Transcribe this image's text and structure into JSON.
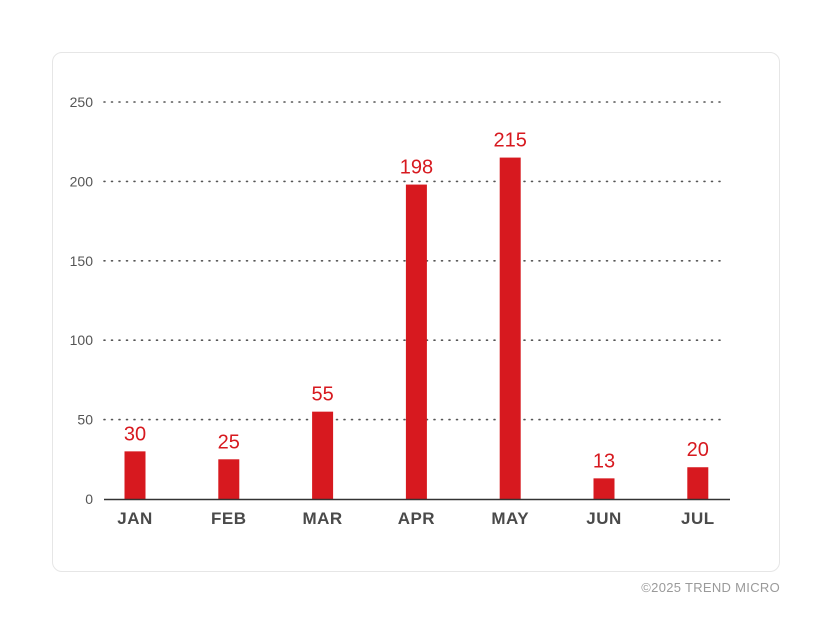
{
  "chart_data": {
    "type": "bar",
    "categories": [
      "JAN",
      "FEB",
      "MAR",
      "APR",
      "MAY",
      "JUN",
      "JUL"
    ],
    "values": [
      30,
      25,
      55,
      198,
      215,
      13,
      20
    ],
    "data_labels": [
      "30",
      "25",
      "55",
      "198",
      "215",
      "13",
      "20"
    ],
    "ylim": [
      0,
      250
    ],
    "yticks": [
      0,
      50,
      100,
      150,
      200,
      250
    ],
    "grid": true,
    "grid_style": "dotted",
    "bar_color": "#d7191f",
    "title": "",
    "xlabel": "",
    "ylabel": ""
  },
  "footer": {
    "copyright": "©2025 TREND MICRO"
  }
}
